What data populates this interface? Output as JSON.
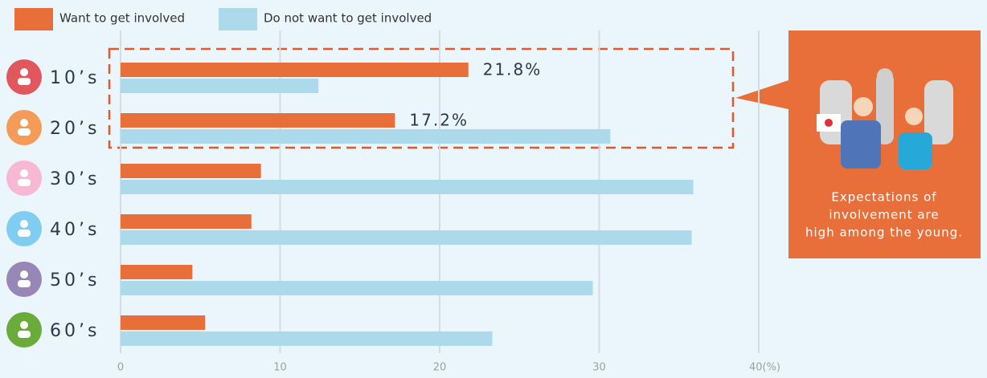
{
  "chart_data": {
    "type": "hbar",
    "categories": [
      "10’s",
      "20’s",
      "30’s",
      "40’s",
      "50’s",
      "60’s"
    ],
    "category_colors": [
      "#e0575e",
      "#f49b57",
      "#f7b8d3",
      "#7fcdf0",
      "#9787b7",
      "#6aab3a"
    ],
    "series": [
      {
        "name": "Want to get involved",
        "color": "#e86f3a",
        "values": [
          21.8,
          17.2,
          8.8,
          8.2,
          4.5,
          5.3
        ],
        "value_labels": [
          "21.8%",
          "17.2%",
          null,
          null,
          null,
          null
        ]
      },
      {
        "name": "Do not want to get involved",
        "color": "#acdaea",
        "values": [
          12.4,
          30.7,
          35.9,
          35.8,
          29.6,
          23.3
        ]
      }
    ],
    "xlim": [
      0,
      40
    ],
    "xticks": [
      0,
      10,
      20,
      30,
      {
        "value": 40,
        "label": "40(%)"
      }
    ],
    "grid": true,
    "annotation": [
      "Expectations of",
      "involvement are",
      "high among the young."
    ]
  }
}
